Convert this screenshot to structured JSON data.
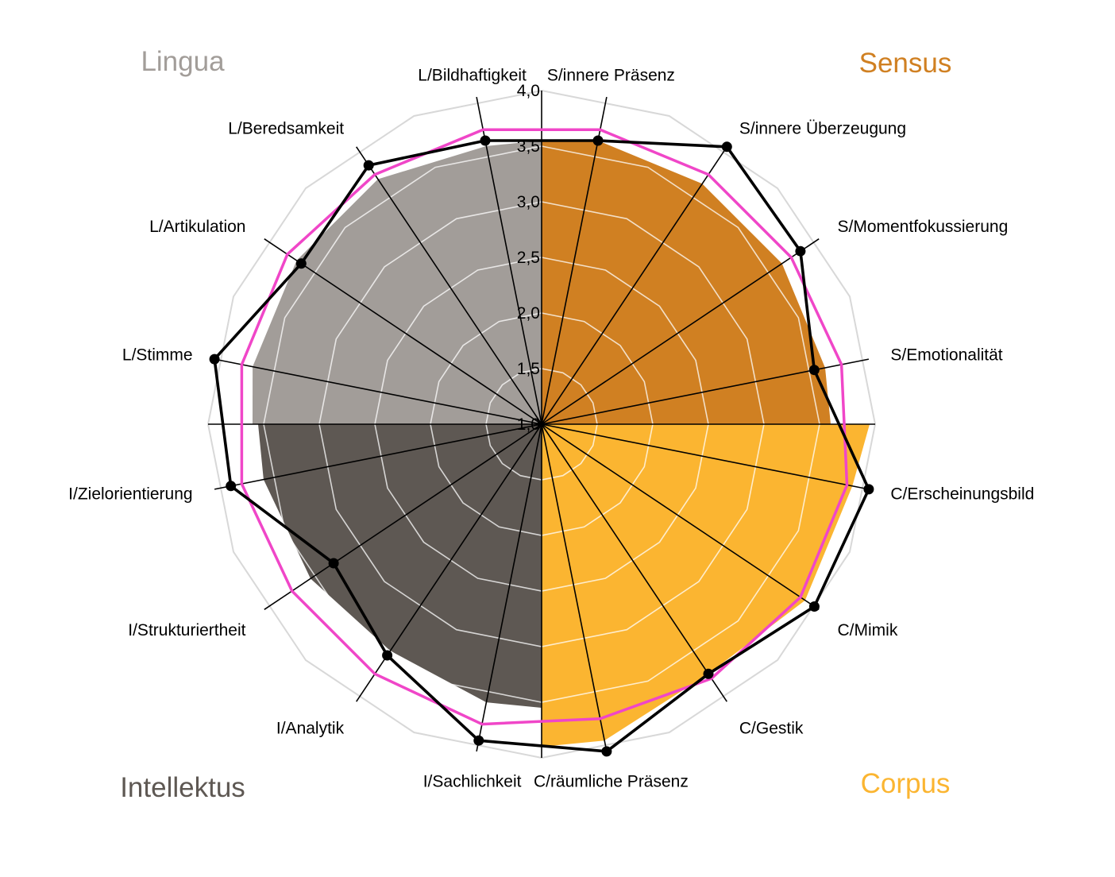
{
  "chart_data": {
    "type": "radar",
    "rmin": 1.0,
    "rmax": 4.0,
    "ticks": [
      "1,0",
      "1,5",
      "2,0",
      "2,5",
      "3,0",
      "3,5",
      "4,0"
    ],
    "tick_values": [
      1.0,
      1.5,
      2.0,
      2.5,
      3.0,
      3.5,
      4.0
    ],
    "axes": [
      "S/innere Präsenz",
      "S/innere Überzeugung",
      "S/Momentfokussierung",
      "S/Emotionalität",
      "C/Erscheinungsbild",
      "C/Mimik",
      "C/Gestik",
      "C/räumliche Präsenz",
      "I/Sachlichkeit",
      "I/Analytik",
      "I/Strukturiertheit",
      "I/Zielorientierung",
      "L/Stimme",
      "L/Artikulation",
      "L/Beredsamkeit",
      "L/Bildhaftigkeit"
    ],
    "groups": [
      {
        "label": "Sensus",
        "color": "#D08022",
        "start_axis": 0,
        "values": [
          3.55,
          3.6,
          3.6,
          3.6,
          3.6
        ]
      },
      {
        "label": "Corpus",
        "color": "#FBB531",
        "start_axis": 4,
        "values": [
          3.95,
          3.85,
          3.85,
          3.7,
          3.9
        ]
      },
      {
        "label": "Intellektus",
        "color": "#5E5853",
        "start_axis": 8,
        "values": [
          3.55,
          3.55,
          3.45,
          3.5,
          3.55
        ]
      },
      {
        "label": "Lingua",
        "color": "#A29D99",
        "start_axis": 12,
        "values": [
          3.6,
          3.65,
          3.65,
          3.65,
          3.55
        ]
      }
    ],
    "series": [
      {
        "name": "",
        "color": "#F046C8",
        "values": [
          3.7,
          3.7,
          3.7,
          3.75,
          3.8,
          3.8,
          3.75,
          3.7,
          3.75,
          3.7,
          3.7,
          3.75,
          3.75,
          3.75,
          3.7,
          3.7
        ]
      },
      {
        "name": "",
        "color": "#000000",
        "values": [
          3.6,
          4.0,
          3.8,
          3.5,
          4.0,
          3.95,
          3.7,
          4.0,
          3.9,
          3.5,
          3.25,
          3.85,
          4.0,
          3.6,
          3.8,
          3.6
        ]
      }
    ]
  }
}
